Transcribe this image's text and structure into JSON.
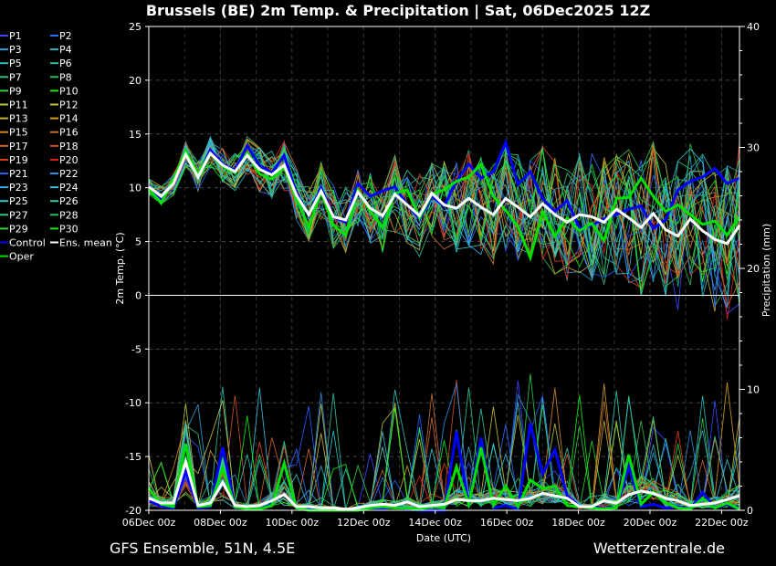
{
  "chart_data": {
    "type": "line",
    "title": "Brussels  (BE)  2m Temp. & Precipitation | Sat, 06Dec2025 12Z",
    "xlabel": "Date (UTC)",
    "ylabel_left": "2m Temp. (°C)",
    "ylabel_right": "Precipitation (mm)",
    "ylim_left": [
      -20,
      25
    ],
    "ylim_right": [
      0,
      40
    ],
    "yticks_left": [
      "25",
      "20",
      "15",
      "10",
      "5",
      "0",
      "-5",
      "-10",
      "-15",
      "-20"
    ],
    "yticks_right": [
      "40",
      "30",
      "20",
      "10",
      "0"
    ],
    "x_range": [
      "2025-12-06T00:00",
      "2025-12-22T12:00"
    ],
    "x_ticks": [
      "06Dec 00z",
      "08Dec 00z",
      "10Dec 00z",
      "12Dec 00z",
      "14Dec 00z",
      "16Dec 00z",
      "18Dec 00z",
      "20Dec 00z",
      "22Dec 00z"
    ],
    "grid": true,
    "legend_position": "left",
    "series_temp": [
      {
        "name": "Control",
        "color": "#0000ff",
        "values": [
          10.2,
          9.0,
          10.6,
          13.1,
          11.1,
          13.5,
          12.2,
          11.6,
          13.9,
          12.1,
          11.4,
          13.0,
          9.5,
          7.5,
          10.0,
          7.3,
          6.8,
          10.4,
          9.2,
          9.7,
          10.1,
          8.4,
          7.1,
          9.2,
          8.3,
          10.6,
          12.2,
          10.9,
          11.5,
          14.2,
          10.3,
          11.5,
          9.0,
          7.8,
          8.8,
          6.2,
          6.5,
          7.1,
          7.5,
          8.0,
          8.3,
          6.2,
          7.0,
          9.8,
          10.6,
          11.0,
          11.8,
          10.4,
          10.9
        ]
      },
      {
        "name": "Oper",
        "color": "#00e000",
        "values": [
          9.8,
          8.6,
          10.8,
          13.4,
          11.3,
          13.2,
          12.0,
          11.4,
          13.2,
          11.3,
          10.8,
          11.9,
          9.0,
          6.3,
          9.6,
          6.5,
          5.6,
          9.8,
          7.8,
          6.3,
          9.5,
          9.8,
          7.2,
          9.4,
          9.8,
          10.6,
          11.0,
          12.2,
          9.2,
          7.9,
          6.4,
          3.5,
          7.8,
          5.5,
          7.2,
          6.0,
          6.7,
          5.1,
          9.0,
          9.1,
          10.9,
          9.2,
          7.8,
          8.4,
          7.5,
          6.6,
          6.9,
          5.6,
          7.3
        ]
      },
      {
        "name": "Ens. mean",
        "color": "#ffffff",
        "values": [
          10.1,
          9.2,
          10.4,
          13.1,
          11.0,
          13.2,
          12.1,
          11.5,
          13.0,
          11.7,
          11.2,
          12.1,
          9.3,
          7.5,
          9.7,
          7.3,
          7.0,
          9.6,
          8.1,
          7.4,
          9.4,
          8.4,
          7.4,
          9.5,
          8.4,
          8.1,
          9.0,
          8.2,
          7.5,
          9.0,
          8.2,
          7.3,
          8.5,
          7.5,
          6.8,
          7.5,
          7.3,
          6.8,
          8.0,
          7.2,
          6.3,
          7.6,
          6.1,
          5.5,
          7.1,
          6.0,
          5.2,
          4.8,
          6.5
        ]
      }
    ],
    "series_precip": [
      {
        "name": "Control",
        "color": "#0000ff",
        "values": [
          0.8,
          0.3,
          0.2,
          3.2,
          0.2,
          0.3,
          5.2,
          0.3,
          0.1,
          0.1,
          0.5,
          3.8,
          0.2,
          0.1,
          0.0,
          0.1,
          0.0,
          0.0,
          0.2,
          0.1,
          0.3,
          0.1,
          0.0,
          0.0,
          0.0,
          6.5,
          0.4,
          6.0,
          0.2,
          0.4,
          0.1,
          7.2,
          3.0,
          5.0,
          1.2,
          0.3,
          0.3,
          0.1,
          0.2,
          3.6,
          0.3,
          0.5,
          0.2,
          0.3,
          0.1,
          1.5,
          0.2,
          0.5,
          0.1
        ]
      },
      {
        "name": "Oper",
        "color": "#00e000",
        "values": [
          1.8,
          0.5,
          0.3,
          5.5,
          0.3,
          0.4,
          3.5,
          0.3,
          0.1,
          0.1,
          0.4,
          3.9,
          0.2,
          0.0,
          0.0,
          0.0,
          0.0,
          0.0,
          0.2,
          0.3,
          0.2,
          0.2,
          0.1,
          0.3,
          0.2,
          3.6,
          0.5,
          5.2,
          0.4,
          2.0,
          0.3,
          2.5,
          1.8,
          2.0,
          0.4,
          0.3,
          0.2,
          0.1,
          0.2,
          4.6,
          0.5,
          1.5,
          0.6,
          0.2,
          0.1,
          1.0,
          0.2,
          0.6,
          0.1
        ]
      },
      {
        "name": "Ens. mean",
        "color": "#ffffff",
        "values": [
          1.0,
          0.6,
          0.6,
          4.0,
          0.4,
          0.6,
          2.3,
          0.4,
          0.3,
          0.4,
          0.8,
          1.3,
          0.3,
          0.3,
          0.2,
          0.2,
          0.1,
          0.2,
          0.4,
          0.5,
          0.4,
          0.7,
          0.3,
          0.4,
          0.5,
          0.9,
          0.8,
          0.8,
          1.0,
          0.9,
          0.8,
          1.0,
          1.4,
          1.2,
          1.0,
          0.3,
          0.3,
          0.8,
          0.6,
          1.3,
          1.6,
          1.4,
          1.0,
          0.8,
          0.4,
          0.5,
          0.6,
          0.9,
          1.2
        ]
      }
    ],
    "members": {
      "names": [
        "P1",
        "P2",
        "P3",
        "P4",
        "P5",
        "P6",
        "P7",
        "P8",
        "P9",
        "P10",
        "P11",
        "P12",
        "P13",
        "P14",
        "P15",
        "P16",
        "P17",
        "P18",
        "P19",
        "P20",
        "P21",
        "P22",
        "P23",
        "P24",
        "P25",
        "P26",
        "P27",
        "P28",
        "P29",
        "P30"
      ],
      "colors": [
        "#3a4bff",
        "#2f6fff",
        "#2aa0d8",
        "#34b0c0",
        "#2ec0c0",
        "#2fc0a0",
        "#2fc080",
        "#2fbf50",
        "#33d040",
        "#20e020",
        "#b8c040",
        "#c8c040",
        "#c8b030",
        "#d0a020",
        "#d08828",
        "#c87030",
        "#d06830",
        "#d05028",
        "#e04020",
        "#e02020",
        "#2060ff",
        "#2a90e0",
        "#30b0e8",
        "#3ac0e0",
        "#30c8d0",
        "#30c8b0",
        "#30c888",
        "#30c060",
        "#30d040",
        "#10f010"
      ]
    },
    "legend": [
      "P1",
      "P2",
      "P3",
      "P4",
      "P5",
      "P6",
      "P7",
      "P8",
      "P9",
      "P10",
      "P11",
      "P12",
      "P13",
      "P14",
      "P15",
      "P16",
      "P17",
      "P18",
      "P19",
      "P20",
      "P21",
      "P22",
      "P23",
      "P24",
      "P25",
      "P26",
      "P27",
      "P28",
      "P29",
      "P30",
      "Control",
      "Ens. mean",
      "Oper"
    ]
  },
  "footer": {
    "left": "GFS Ensemble, 51N, 4.5E",
    "right": "Wetterzentrale.de"
  }
}
